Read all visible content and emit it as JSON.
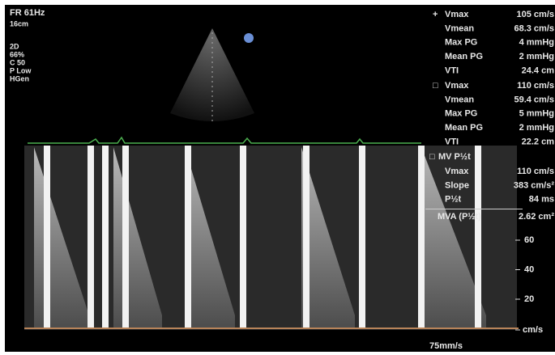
{
  "header": {
    "frame_rate": "FR 61Hz",
    "depth": "16cm"
  },
  "settings": [
    "2D",
    "66%",
    "C 50",
    "P Low",
    "HGen"
  ],
  "measurements": [
    {
      "marker": "+",
      "title": null,
      "rows": [
        {
          "label": "Vmax",
          "value": "105 cm/s"
        },
        {
          "label": "Vmean",
          "value": "68.3 cm/s"
        },
        {
          "label": "Max PG",
          "value": "4 mmHg"
        },
        {
          "label": "Mean PG",
          "value": "2 mmHg"
        },
        {
          "label": "VTI",
          "value": "24.4 cm"
        }
      ]
    },
    {
      "marker": "□",
      "title": null,
      "rows": [
        {
          "label": "Vmax",
          "value": "110 cm/s"
        },
        {
          "label": "Vmean",
          "value": "59.4 cm/s"
        },
        {
          "label": "Max PG",
          "value": "5 mmHg"
        },
        {
          "label": "Mean PG",
          "value": "2 mmHg"
        },
        {
          "label": "VTI",
          "value": "22.2 cm"
        }
      ]
    },
    {
      "marker": "□",
      "title": "MV P½t",
      "rows": [
        {
          "label": "Vmax",
          "value": "110 cm/s"
        },
        {
          "label": "Slope",
          "value": "383 cm/s²"
        },
        {
          "label": "P½t",
          "value": "84 ms"
        }
      ]
    }
  ],
  "mva": {
    "label": "MVA (P½t)",
    "value": "2.62 cm²"
  },
  "scale": {
    "ticks": [
      "60",
      "40",
      "20"
    ],
    "unit": "cm/s"
  },
  "sweep_speed": "75mm/s"
}
